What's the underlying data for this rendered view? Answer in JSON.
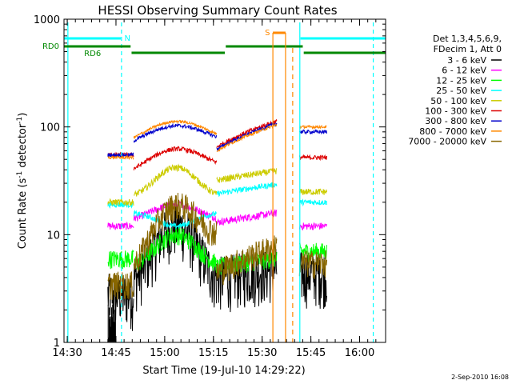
{
  "chart_data": {
    "type": "line",
    "title": "HESSI Observing Summary Count Rates",
    "xlabel": "Start Time (19-Jul-10 14:29:22)",
    "ylabel": "Count Rate (s⁻¹ detector⁻¹)",
    "ylabel_main": "Count Rate (s",
    "ylabel_sup1": "-1",
    "ylabel_mid": " detector",
    "ylabel_sup2": "-1",
    "ylabel_end": ")",
    "yscale": "log",
    "ylim": [
      1,
      1000
    ],
    "xlim_minutes_after_1429": [
      0,
      99
    ],
    "x_ticks": [
      {
        "label": "14:30",
        "minute": 1
      },
      {
        "label": "14:45",
        "minute": 16
      },
      {
        "label": "15:00",
        "minute": 31
      },
      {
        "label": "15:15",
        "minute": 46
      },
      {
        "label": "15:30",
        "minute": 61
      },
      {
        "label": "15:45",
        "minute": 76
      },
      {
        "label": "16:00",
        "minute": 91
      }
    ],
    "y_ticks": [
      {
        "label": "1",
        "value": 1
      },
      {
        "label": "10",
        "value": 10
      },
      {
        "label": "100",
        "value": 100
      },
      {
        "label": "1000",
        "value": 1000
      }
    ],
    "legend_position": "right",
    "legend_header": [
      "Det 1,3,4,5,6,9,",
      "FDecim 1, Att 0"
    ],
    "timestamp": "2-Sep-2010 16:08",
    "series": [
      {
        "name": "3 - 6 keV",
        "color": "#000000"
      },
      {
        "name": "6 - 12 keV",
        "color": "#ff00ff"
      },
      {
        "name": "12 - 25 keV",
        "color": "#00ff00"
      },
      {
        "name": "25 - 50 keV",
        "color": "#00ffff"
      },
      {
        "name": "50 - 100 keV",
        "color": "#cccc00"
      },
      {
        "name": "100 - 300 keV",
        "color": "#dd0000"
      },
      {
        "name": "300 - 800 keV",
        "color": "#0000cc"
      },
      {
        "name": "800 - 7000 keV",
        "color": "#ff8800"
      },
      {
        "name": "7000 - 20000 keV",
        "color": "#886600"
      }
    ],
    "flag_labels": {
      "n": "N",
      "s": "S",
      "rd0": "RD0",
      "rd6": "RD6"
    },
    "colors": {
      "cyan_flag": "#00ffff",
      "green_flag": "#008800",
      "orange_flag": "#ff8800"
    }
  }
}
